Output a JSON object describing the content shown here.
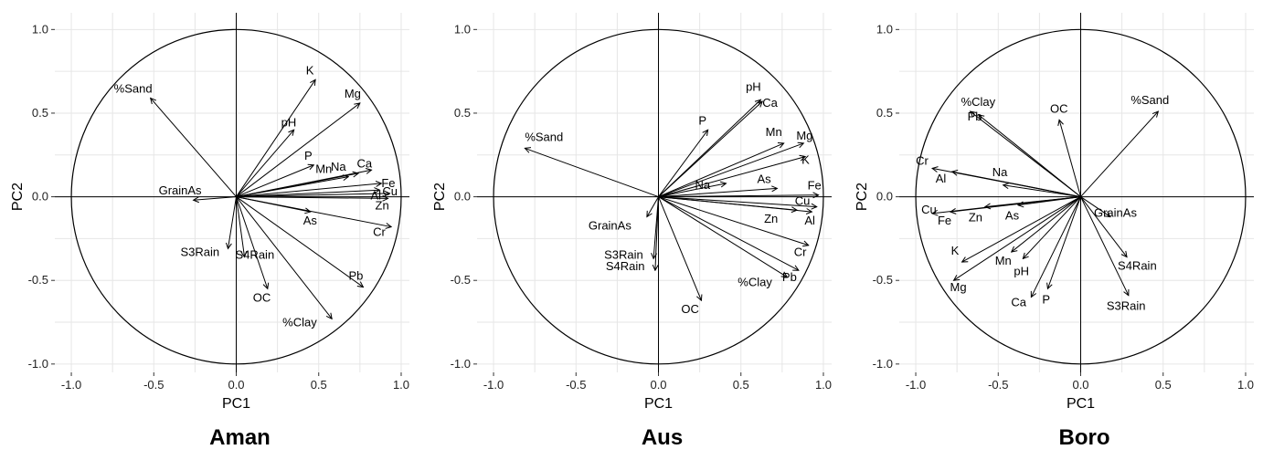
{
  "chart_data": [
    {
      "type": "scatter",
      "title": "Aman",
      "xlabel": "PC1",
      "ylabel": "PC2",
      "xlim": [
        -1.1,
        1.05
      ],
      "ylim": [
        -1.05,
        1.1
      ],
      "xticks": [
        "-1.0",
        "-0.5",
        "0.0",
        "0.5",
        "1.0"
      ],
      "yticks": [
        "-1.0",
        "-0.5",
        "0.0",
        "0.5",
        "1.0"
      ],
      "grid": true,
      "unit_circle": true,
      "vectors": [
        {
          "name": "%Sand",
          "x": -0.52,
          "y": 0.59
        },
        {
          "name": "K",
          "x": 0.48,
          "y": 0.7
        },
        {
          "name": "Mg",
          "x": 0.75,
          "y": 0.56
        },
        {
          "name": "pH",
          "x": 0.35,
          "y": 0.4
        },
        {
          "name": "P",
          "x": 0.47,
          "y": 0.19
        },
        {
          "name": "Mn",
          "x": 0.68,
          "y": 0.12
        },
        {
          "name": "Na",
          "x": 0.74,
          "y": 0.14
        },
        {
          "name": "Ca",
          "x": 0.82,
          "y": 0.16
        },
        {
          "name": "Fe",
          "x": 0.88,
          "y": 0.08
        },
        {
          "name": "Al",
          "x": 0.87,
          "y": 0.04
        },
        {
          "name": "Cu",
          "x": 0.93,
          "y": 0.02
        },
        {
          "name": "Zn",
          "x": 0.92,
          "y": -0.01
        },
        {
          "name": "Cr",
          "x": 0.94,
          "y": -0.18
        },
        {
          "name": "As",
          "x": 0.45,
          "y": -0.09
        },
        {
          "name": "Pb",
          "x": 0.77,
          "y": -0.54
        },
        {
          "name": "%Clay",
          "x": 0.58,
          "y": -0.73
        },
        {
          "name": "OC",
          "x": 0.19,
          "y": -0.55
        },
        {
          "name": "S4Rain",
          "x": 0.05,
          "y": -0.36
        },
        {
          "name": "S3Rain",
          "x": -0.05,
          "y": -0.31
        },
        {
          "name": "GrainAs",
          "x": -0.26,
          "y": -0.02
        }
      ]
    },
    {
      "type": "scatter",
      "title": "Aus",
      "xlabel": "PC1",
      "ylabel": "PC2",
      "xlim": [
        -1.1,
        1.05
      ],
      "ylim": [
        -1.05,
        1.1
      ],
      "xticks": [
        "-1.0",
        "-0.5",
        "0.0",
        "0.5",
        "1.0"
      ],
      "yticks": [
        "-1.0",
        "-0.5",
        "0.0",
        "0.5",
        "1.0"
      ],
      "grid": true,
      "unit_circle": true,
      "vectors": [
        {
          "name": "%Sand",
          "x": -0.81,
          "y": 0.29
        },
        {
          "name": "P",
          "x": 0.3,
          "y": 0.4
        },
        {
          "name": "pH",
          "x": 0.62,
          "y": 0.58
        },
        {
          "name": "Ca",
          "x": 0.63,
          "y": 0.57
        },
        {
          "name": "Mn",
          "x": 0.76,
          "y": 0.32
        },
        {
          "name": "Mg",
          "x": 0.88,
          "y": 0.32
        },
        {
          "name": "K",
          "x": 0.89,
          "y": 0.24
        },
        {
          "name": "Na",
          "x": 0.41,
          "y": 0.08
        },
        {
          "name": "As",
          "x": 0.72,
          "y": 0.05
        },
        {
          "name": "Fe",
          "x": 0.97,
          "y": 0.01
        },
        {
          "name": "Cu",
          "x": 0.96,
          "y": -0.06
        },
        {
          "name": "Al",
          "x": 0.93,
          "y": -0.09
        },
        {
          "name": "Zn",
          "x": 0.84,
          "y": -0.08
        },
        {
          "name": "Cr",
          "x": 0.91,
          "y": -0.29
        },
        {
          "name": "Pb",
          "x": 0.85,
          "y": -0.44
        },
        {
          "name": "%Clay",
          "x": 0.78,
          "y": -0.48
        },
        {
          "name": "OC",
          "x": 0.26,
          "y": -0.62
        },
        {
          "name": "S4Rain",
          "x": -0.02,
          "y": -0.44
        },
        {
          "name": "S3Rain",
          "x": -0.03,
          "y": -0.37
        },
        {
          "name": "GrainAs",
          "x": -0.07,
          "y": -0.12
        }
      ]
    },
    {
      "type": "scatter",
      "title": "Boro",
      "xlabel": "PC1",
      "ylabel": "PC2",
      "xlim": [
        -1.1,
        1.05
      ],
      "ylim": [
        -1.05,
        1.1
      ],
      "xticks": [
        "-1.0",
        "-0.5",
        "0.0",
        "0.5",
        "1.0"
      ],
      "yticks": [
        "-1.0",
        "-0.5",
        "0.0",
        "0.5",
        "1.0"
      ],
      "grid": true,
      "unit_circle": true,
      "vectors": [
        {
          "name": "%Sand",
          "x": 0.47,
          "y": 0.51
        },
        {
          "name": "%Clay",
          "x": -0.67,
          "y": 0.51
        },
        {
          "name": "Pb",
          "x": -0.62,
          "y": 0.49
        },
        {
          "name": "OC",
          "x": -0.13,
          "y": 0.46
        },
        {
          "name": "Cr",
          "x": -0.9,
          "y": 0.17
        },
        {
          "name": "Al",
          "x": -0.78,
          "y": 0.15
        },
        {
          "name": "Na",
          "x": -0.47,
          "y": 0.07
        },
        {
          "name": "GrainAs",
          "x": 0.18,
          "y": -0.12
        },
        {
          "name": "Cu",
          "x": -0.9,
          "y": -0.1
        },
        {
          "name": "Fe",
          "x": -0.79,
          "y": -0.09
        },
        {
          "name": "Zn",
          "x": -0.58,
          "y": -0.06
        },
        {
          "name": "As",
          "x": -0.38,
          "y": -0.05
        },
        {
          "name": "K",
          "x": -0.72,
          "y": -0.39
        },
        {
          "name": "Mg",
          "x": -0.77,
          "y": -0.5
        },
        {
          "name": "Mn",
          "x": -0.42,
          "y": -0.33
        },
        {
          "name": "pH",
          "x": -0.35,
          "y": -0.37
        },
        {
          "name": "Ca",
          "x": -0.3,
          "y": -0.6
        },
        {
          "name": "P",
          "x": -0.2,
          "y": -0.55
        },
        {
          "name": "S4Rain",
          "x": 0.28,
          "y": -0.36
        },
        {
          "name": "S3Rain",
          "x": 0.29,
          "y": -0.59
        }
      ]
    }
  ]
}
